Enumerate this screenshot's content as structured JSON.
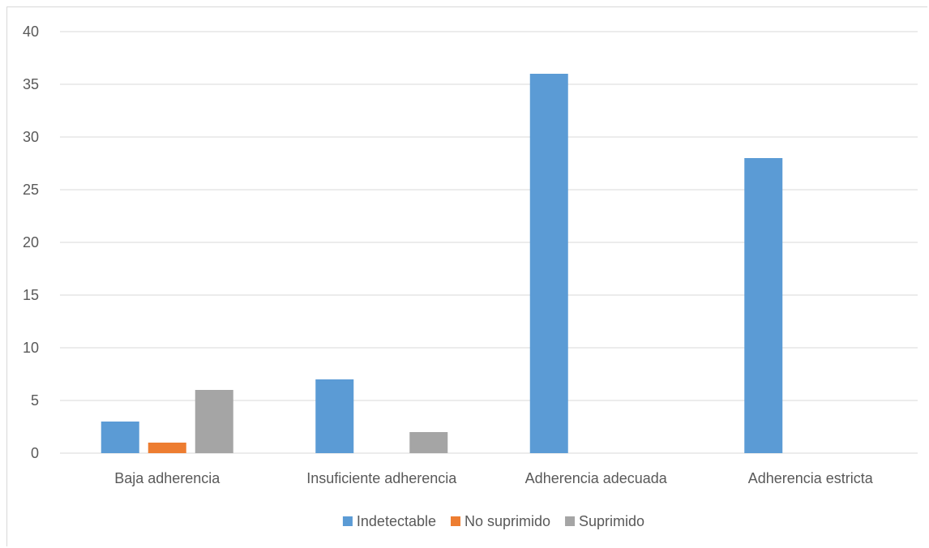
{
  "chart_data": {
    "type": "bar",
    "categories": [
      "Baja adherencia",
      "Insuficiente adherencia",
      "Adherencia adecuada",
      "Adherencia estricta"
    ],
    "series": [
      {
        "name": "Indetectable",
        "values": [
          3,
          7,
          36,
          28
        ],
        "color": "#5b9bd5"
      },
      {
        "name": "No suprimido",
        "values": [
          1,
          0,
          0,
          0
        ],
        "color": "#ed7d31"
      },
      {
        "name": "Suprimido",
        "values": [
          6,
          2,
          0,
          0
        ],
        "color": "#a5a5a5"
      }
    ],
    "ylim": [
      0,
      40
    ],
    "yticks": [
      0,
      5,
      10,
      15,
      20,
      25,
      30,
      35,
      40
    ],
    "grid": true,
    "legend_position": "bottom"
  }
}
